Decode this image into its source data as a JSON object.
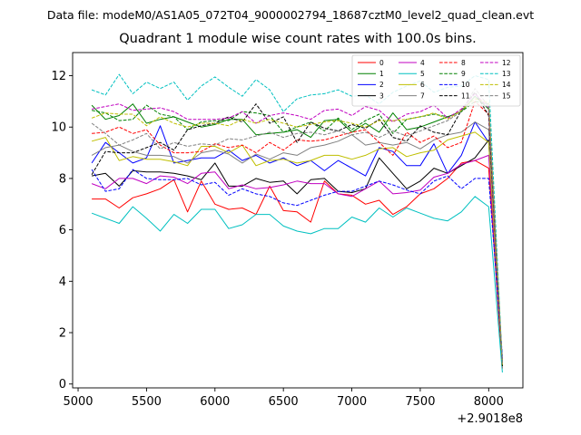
{
  "suptitle": "Data file: modeM0/AS1A05_072T04_9000002794_18687cztM0_level2_quad_clean.evt",
  "chart_data": {
    "type": "line",
    "title": "Quadrant 1 module wise count rates with 100.0s bins.",
    "xlabel": "",
    "ylabel": "",
    "x_offset_label": "+2.9018e8",
    "xlim": [
      4960,
      8250
    ],
    "ylim": [
      -0.15,
      12.9
    ],
    "xticks": [
      5000,
      5500,
      6000,
      6500,
      7000,
      7500,
      8000
    ],
    "yticks": [
      0,
      2,
      4,
      6,
      8,
      10,
      12
    ],
    "grid": false,
    "legend_position": "top-right",
    "x": [
      5100,
      5200,
      5300,
      5400,
      5500,
      5600,
      5700,
      5800,
      5900,
      6000,
      6100,
      6200,
      6300,
      6400,
      6500,
      6600,
      6700,
      6800,
      6900,
      7000,
      7100,
      7200,
      7300,
      7400,
      7500,
      7600,
      7700,
      7800,
      7900,
      8000,
      8100
    ],
    "series": [
      {
        "name": "0",
        "color": "#ff0000",
        "dash": "solid",
        "values": [
          7.2,
          7.2,
          6.85,
          7.25,
          7.4,
          7.6,
          7.95,
          6.7,
          7.9,
          7.0,
          6.8,
          6.85,
          6.6,
          7.7,
          6.75,
          6.7,
          6.3,
          7.9,
          7.4,
          7.35,
          7.0,
          7.15,
          6.6,
          6.9,
          7.4,
          7.6,
          8.0,
          8.6,
          8.7,
          8.4,
          0.6
        ]
      },
      {
        "name": "1",
        "color": "#008000",
        "dash": "solid",
        "values": [
          10.85,
          10.3,
          10.45,
          10.9,
          10.15,
          10.3,
          10.4,
          10.2,
          10.0,
          10.1,
          10.3,
          10.3,
          9.7,
          9.75,
          9.8,
          9.9,
          9.6,
          10.25,
          10.3,
          9.8,
          10.15,
          9.8,
          10.55,
          9.9,
          10.0,
          10.2,
          10.4,
          10.6,
          11.2,
          10.7,
          0.7
        ]
      },
      {
        "name": "2",
        "color": "#0000ff",
        "dash": "solid",
        "values": [
          8.6,
          9.4,
          9.0,
          8.6,
          8.8,
          10.05,
          8.6,
          8.7,
          8.8,
          8.8,
          9.1,
          8.7,
          8.9,
          8.6,
          8.8,
          8.5,
          8.7,
          8.3,
          8.7,
          8.4,
          8.1,
          9.2,
          9.05,
          8.5,
          8.5,
          9.35,
          8.2,
          8.9,
          10.2,
          9.4,
          0.9
        ]
      },
      {
        "name": "3",
        "color": "#000000",
        "dash": "solid",
        "values": [
          8.1,
          8.2,
          7.7,
          8.3,
          8.25,
          8.25,
          8.2,
          8.1,
          7.95,
          8.6,
          7.7,
          7.7,
          8.0,
          7.85,
          7.9,
          7.4,
          7.95,
          8.0,
          7.5,
          7.45,
          7.6,
          8.8,
          8.2,
          7.6,
          7.9,
          8.4,
          8.2,
          8.5,
          8.8,
          9.5,
          0.9
        ]
      },
      {
        "name": "4",
        "color": "#c000c0",
        "dash": "solid",
        "values": [
          7.8,
          7.6,
          8.0,
          8.0,
          7.8,
          8.1,
          8.05,
          7.8,
          8.2,
          8.25,
          7.6,
          7.75,
          7.6,
          7.65,
          7.75,
          7.9,
          7.8,
          7.8,
          7.4,
          7.3,
          7.6,
          7.9,
          7.4,
          7.45,
          7.55,
          8.05,
          8.2,
          8.55,
          8.7,
          8.9,
          0.9
        ]
      },
      {
        "name": "5",
        "color": "#00c0c0",
        "dash": "solid",
        "values": [
          6.65,
          6.45,
          6.25,
          6.9,
          6.45,
          5.95,
          6.6,
          6.25,
          6.8,
          6.8,
          6.05,
          6.2,
          6.6,
          6.6,
          6.15,
          5.95,
          5.85,
          6.05,
          6.05,
          6.5,
          6.3,
          6.85,
          6.5,
          6.85,
          6.65,
          6.45,
          6.35,
          6.7,
          7.3,
          6.9,
          0.45
        ]
      },
      {
        "name": "6",
        "color": "#bfbf00",
        "dash": "solid",
        "values": [
          9.45,
          9.6,
          8.7,
          8.85,
          8.75,
          8.75,
          8.65,
          8.5,
          9.25,
          9.25,
          9.0,
          9.3,
          8.5,
          8.7,
          8.75,
          8.6,
          8.7,
          8.9,
          8.9,
          8.75,
          8.9,
          9.15,
          9.2,
          8.85,
          9.0,
          9.1,
          9.5,
          9.65,
          9.8,
          9.4,
          0.8
        ]
      },
      {
        "name": "7",
        "color": "#808080",
        "dash": "solid",
        "values": [
          8.9,
          9.2,
          9.3,
          9.05,
          8.9,
          8.9,
          8.85,
          8.6,
          9.0,
          9.1,
          8.95,
          8.6,
          8.95,
          8.75,
          9.0,
          8.9,
          9.2,
          9.3,
          9.45,
          9.7,
          9.3,
          9.4,
          9.3,
          9.4,
          9.15,
          9.5,
          9.7,
          9.8,
          10.2,
          9.9,
          0.8
        ]
      },
      {
        "name": "8",
        "color": "#ff0000",
        "dash": "dashed",
        "values": [
          9.75,
          9.8,
          10.0,
          9.75,
          9.9,
          9.3,
          9.0,
          9.0,
          9.05,
          9.35,
          9.2,
          9.3,
          9.0,
          9.4,
          9.1,
          9.5,
          9.45,
          9.5,
          9.65,
          9.8,
          9.9,
          9.4,
          8.9,
          9.8,
          9.4,
          9.65,
          9.2,
          9.4,
          11.0,
          10.5,
          0.7
        ]
      },
      {
        "name": "9",
        "color": "#008000",
        "dash": "dashed",
        "values": [
          10.65,
          10.55,
          10.25,
          10.3,
          10.85,
          10.5,
          10.4,
          9.9,
          10.2,
          10.25,
          10.25,
          10.6,
          10.55,
          10.45,
          9.8,
          10.0,
          10.2,
          9.85,
          10.35,
          9.9,
          10.25,
          10.5,
          9.75,
          10.3,
          10.4,
          10.5,
          10.4,
          10.6,
          11.0,
          10.9,
          0.7
        ]
      },
      {
        "name": "10",
        "color": "#0000ff",
        "dash": "dashed",
        "values": [
          8.35,
          7.5,
          7.6,
          8.35,
          8.0,
          7.95,
          7.95,
          8.0,
          7.75,
          7.85,
          7.35,
          7.6,
          7.4,
          7.3,
          7.05,
          6.95,
          7.15,
          7.35,
          7.5,
          7.5,
          7.7,
          7.9,
          7.75,
          7.55,
          7.4,
          7.9,
          8.1,
          7.6,
          8.0,
          8.0,
          1.1
        ]
      },
      {
        "name": "11",
        "color": "#000000",
        "dash": "dashed",
        "values": [
          8.15,
          9.05,
          9.0,
          9.0,
          9.2,
          9.4,
          9.1,
          9.9,
          10.05,
          10.15,
          10.4,
          10.2,
          10.9,
          10.15,
          10.4,
          9.4,
          10.2,
          9.95,
          9.85,
          10.1,
          9.95,
          10.3,
          9.6,
          9.45,
          10.05,
          9.8,
          9.7,
          10.65,
          11.35,
          10.45,
          0.7
        ]
      },
      {
        "name": "12",
        "color": "#c000c0",
        "dash": "dashed",
        "values": [
          10.7,
          10.8,
          10.9,
          10.65,
          10.7,
          10.75,
          10.6,
          10.3,
          10.3,
          10.3,
          10.35,
          10.6,
          10.15,
          10.45,
          10.55,
          10.45,
          10.3,
          10.65,
          10.7,
          10.45,
          10.8,
          10.65,
          10.2,
          10.5,
          10.6,
          10.85,
          10.35,
          10.7,
          11.3,
          10.75,
          0.75
        ]
      },
      {
        "name": "13",
        "color": "#00c0c0",
        "dash": "dashed",
        "values": [
          11.45,
          11.25,
          12.05,
          11.3,
          11.75,
          11.5,
          11.75,
          11.05,
          11.6,
          11.95,
          11.55,
          11.2,
          11.85,
          11.45,
          10.6,
          11.1,
          11.25,
          11.3,
          11.45,
          11.2,
          11.25,
          10.9,
          11.35,
          11.6,
          11.8,
          11.35,
          11.55,
          11.6,
          12.0,
          11.85,
          0.75
        ]
      },
      {
        "name": "14",
        "color": "#bfbf00",
        "dash": "dashed",
        "values": [
          10.35,
          10.55,
          10.5,
          10.5,
          10.05,
          10.4,
          10.15,
          10.0,
          10.15,
          10.15,
          10.05,
          10.3,
          10.15,
          10.3,
          10.15,
          10.0,
          10.1,
          10.2,
          10.25,
          10.15,
          10.0,
          10.25,
          10.25,
          10.3,
          10.4,
          10.55,
          10.3,
          10.65,
          11.1,
          10.95,
          0.75
        ]
      },
      {
        "name": "15",
        "color": "#808080",
        "dash": "dashed",
        "values": [
          10.15,
          9.75,
          9.3,
          9.5,
          9.75,
          9.15,
          9.4,
          9.25,
          9.35,
          9.3,
          9.55,
          9.5,
          9.65,
          9.8,
          9.6,
          9.75,
          9.8,
          9.7,
          9.85,
          9.7,
          9.8,
          9.6,
          9.85,
          9.65,
          9.85,
          10.05,
          10.25,
          10.6,
          11.5,
          10.8,
          0.75
        ]
      }
    ]
  }
}
